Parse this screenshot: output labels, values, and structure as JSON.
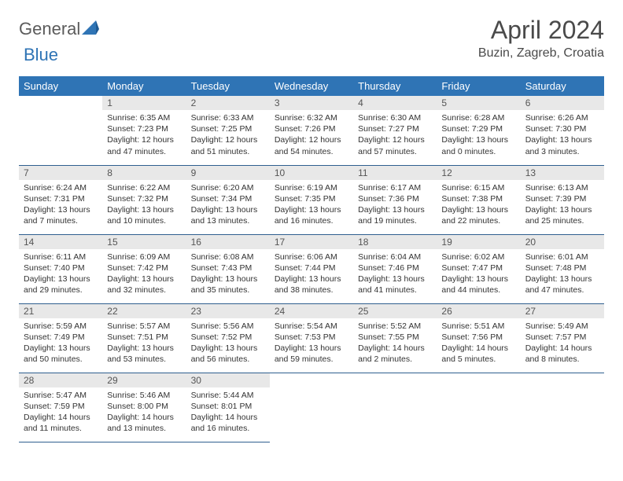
{
  "logo": {
    "part1": "General",
    "part2": "Blue"
  },
  "title": "April 2024",
  "location": "Buzin, Zagreb, Croatia",
  "colors": {
    "header_bg": "#2f74b5",
    "header_text": "#ffffff",
    "daynum_bg": "#e8e8e8",
    "cell_text": "#333333",
    "border": "#2f5f8f",
    "logo_gray": "#5b5b5b",
    "logo_blue": "#2f74b5"
  },
  "weekdays": [
    "Sunday",
    "Monday",
    "Tuesday",
    "Wednesday",
    "Thursday",
    "Friday",
    "Saturday"
  ],
  "weeks": [
    [
      {
        "empty": true
      },
      {
        "day": "1",
        "sunrise": "Sunrise: 6:35 AM",
        "sunset": "Sunset: 7:23 PM",
        "daylight": "Daylight: 12 hours and 47 minutes."
      },
      {
        "day": "2",
        "sunrise": "Sunrise: 6:33 AM",
        "sunset": "Sunset: 7:25 PM",
        "daylight": "Daylight: 12 hours and 51 minutes."
      },
      {
        "day": "3",
        "sunrise": "Sunrise: 6:32 AM",
        "sunset": "Sunset: 7:26 PM",
        "daylight": "Daylight: 12 hours and 54 minutes."
      },
      {
        "day": "4",
        "sunrise": "Sunrise: 6:30 AM",
        "sunset": "Sunset: 7:27 PM",
        "daylight": "Daylight: 12 hours and 57 minutes."
      },
      {
        "day": "5",
        "sunrise": "Sunrise: 6:28 AM",
        "sunset": "Sunset: 7:29 PM",
        "daylight": "Daylight: 13 hours and 0 minutes."
      },
      {
        "day": "6",
        "sunrise": "Sunrise: 6:26 AM",
        "sunset": "Sunset: 7:30 PM",
        "daylight": "Daylight: 13 hours and 3 minutes."
      }
    ],
    [
      {
        "day": "7",
        "sunrise": "Sunrise: 6:24 AM",
        "sunset": "Sunset: 7:31 PM",
        "daylight": "Daylight: 13 hours and 7 minutes."
      },
      {
        "day": "8",
        "sunrise": "Sunrise: 6:22 AM",
        "sunset": "Sunset: 7:32 PM",
        "daylight": "Daylight: 13 hours and 10 minutes."
      },
      {
        "day": "9",
        "sunrise": "Sunrise: 6:20 AM",
        "sunset": "Sunset: 7:34 PM",
        "daylight": "Daylight: 13 hours and 13 minutes."
      },
      {
        "day": "10",
        "sunrise": "Sunrise: 6:19 AM",
        "sunset": "Sunset: 7:35 PM",
        "daylight": "Daylight: 13 hours and 16 minutes."
      },
      {
        "day": "11",
        "sunrise": "Sunrise: 6:17 AM",
        "sunset": "Sunset: 7:36 PM",
        "daylight": "Daylight: 13 hours and 19 minutes."
      },
      {
        "day": "12",
        "sunrise": "Sunrise: 6:15 AM",
        "sunset": "Sunset: 7:38 PM",
        "daylight": "Daylight: 13 hours and 22 minutes."
      },
      {
        "day": "13",
        "sunrise": "Sunrise: 6:13 AM",
        "sunset": "Sunset: 7:39 PM",
        "daylight": "Daylight: 13 hours and 25 minutes."
      }
    ],
    [
      {
        "day": "14",
        "sunrise": "Sunrise: 6:11 AM",
        "sunset": "Sunset: 7:40 PM",
        "daylight": "Daylight: 13 hours and 29 minutes."
      },
      {
        "day": "15",
        "sunrise": "Sunrise: 6:09 AM",
        "sunset": "Sunset: 7:42 PM",
        "daylight": "Daylight: 13 hours and 32 minutes."
      },
      {
        "day": "16",
        "sunrise": "Sunrise: 6:08 AM",
        "sunset": "Sunset: 7:43 PM",
        "daylight": "Daylight: 13 hours and 35 minutes."
      },
      {
        "day": "17",
        "sunrise": "Sunrise: 6:06 AM",
        "sunset": "Sunset: 7:44 PM",
        "daylight": "Daylight: 13 hours and 38 minutes."
      },
      {
        "day": "18",
        "sunrise": "Sunrise: 6:04 AM",
        "sunset": "Sunset: 7:46 PM",
        "daylight": "Daylight: 13 hours and 41 minutes."
      },
      {
        "day": "19",
        "sunrise": "Sunrise: 6:02 AM",
        "sunset": "Sunset: 7:47 PM",
        "daylight": "Daylight: 13 hours and 44 minutes."
      },
      {
        "day": "20",
        "sunrise": "Sunrise: 6:01 AM",
        "sunset": "Sunset: 7:48 PM",
        "daylight": "Daylight: 13 hours and 47 minutes."
      }
    ],
    [
      {
        "day": "21",
        "sunrise": "Sunrise: 5:59 AM",
        "sunset": "Sunset: 7:49 PM",
        "daylight": "Daylight: 13 hours and 50 minutes."
      },
      {
        "day": "22",
        "sunrise": "Sunrise: 5:57 AM",
        "sunset": "Sunset: 7:51 PM",
        "daylight": "Daylight: 13 hours and 53 minutes."
      },
      {
        "day": "23",
        "sunrise": "Sunrise: 5:56 AM",
        "sunset": "Sunset: 7:52 PM",
        "daylight": "Daylight: 13 hours and 56 minutes."
      },
      {
        "day": "24",
        "sunrise": "Sunrise: 5:54 AM",
        "sunset": "Sunset: 7:53 PM",
        "daylight": "Daylight: 13 hours and 59 minutes."
      },
      {
        "day": "25",
        "sunrise": "Sunrise: 5:52 AM",
        "sunset": "Sunset: 7:55 PM",
        "daylight": "Daylight: 14 hours and 2 minutes."
      },
      {
        "day": "26",
        "sunrise": "Sunrise: 5:51 AM",
        "sunset": "Sunset: 7:56 PM",
        "daylight": "Daylight: 14 hours and 5 minutes."
      },
      {
        "day": "27",
        "sunrise": "Sunrise: 5:49 AM",
        "sunset": "Sunset: 7:57 PM",
        "daylight": "Daylight: 14 hours and 8 minutes."
      }
    ],
    [
      {
        "day": "28",
        "sunrise": "Sunrise: 5:47 AM",
        "sunset": "Sunset: 7:59 PM",
        "daylight": "Daylight: 14 hours and 11 minutes."
      },
      {
        "day": "29",
        "sunrise": "Sunrise: 5:46 AM",
        "sunset": "Sunset: 8:00 PM",
        "daylight": "Daylight: 14 hours and 13 minutes."
      },
      {
        "day": "30",
        "sunrise": "Sunrise: 5:44 AM",
        "sunset": "Sunset: 8:01 PM",
        "daylight": "Daylight: 14 hours and 16 minutes."
      },
      {
        "empty": true
      },
      {
        "empty": true
      },
      {
        "empty": true
      },
      {
        "empty": true
      }
    ]
  ]
}
